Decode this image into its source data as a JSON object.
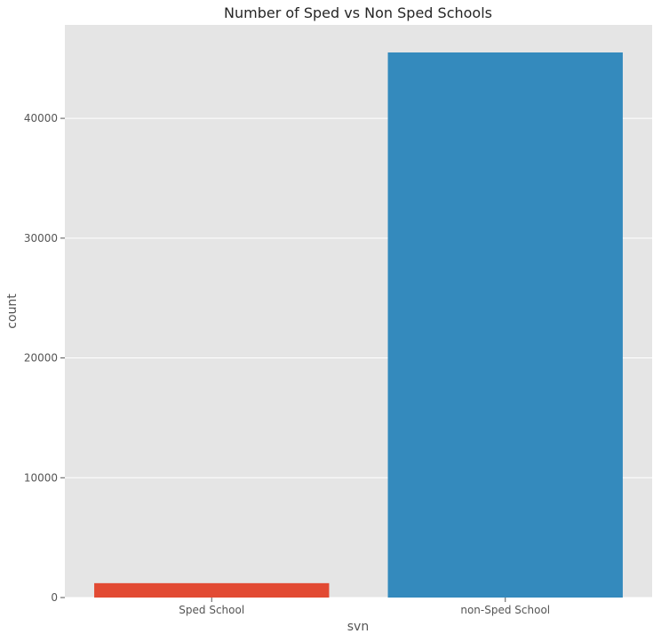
{
  "chart_data": {
    "type": "bar",
    "title": "Number of Sped vs Non Sped Schools",
    "xlabel": "svn",
    "ylabel": "count",
    "categories": [
      "Sped School",
      "non-Sped School"
    ],
    "values": [
      1200,
      45500
    ],
    "colors": [
      "#E24A33",
      "#348ABD"
    ],
    "ylim": [
      0,
      47800
    ],
    "yticks": [
      0,
      10000,
      20000,
      30000,
      40000
    ],
    "ytick_labels": [
      "0",
      "10000",
      "20000",
      "30000",
      "40000"
    ],
    "grid": true,
    "legend": "none",
    "background": "#E5E5E5"
  }
}
